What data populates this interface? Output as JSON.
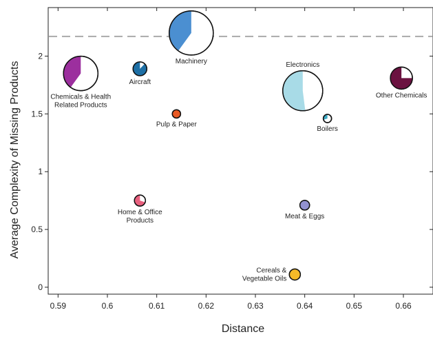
{
  "chart_data": {
    "type": "scatter",
    "subtype": "bubble-pie",
    "xlabel": "Distance",
    "ylabel": "Average Complexity of Missing Products",
    "xlim": [
      0.588,
      0.666
    ],
    "ylim": [
      -0.06,
      2.42
    ],
    "xticks": [
      "0.59",
      "0.6",
      "0.61",
      "0.62",
      "0.63",
      "0.64",
      "0.65",
      "0.66"
    ],
    "yticks": [
      "0",
      "0.5",
      "1",
      "1.5",
      "2"
    ],
    "reference_line": {
      "y": 2.17,
      "style": "dashed",
      "color": "#aaaaaa"
    },
    "points": [
      {
        "label": [
          "Machinery"
        ],
        "x": 0.617,
        "y": 2.2,
        "size": 32,
        "share": 0.4,
        "color": "#4b8fd1",
        "labelPos": "below"
      },
      {
        "label": [
          "Chemicals & Health",
          "Related Products"
        ],
        "x": 0.5946,
        "y": 1.85,
        "size": 25,
        "share": 0.4,
        "color": "#9c2f9e",
        "labelPos": "below"
      },
      {
        "label": [
          "Aircraft"
        ],
        "x": 0.6066,
        "y": 1.89,
        "size": 10,
        "share": 0.88,
        "color": "#1d6fa5",
        "labelPos": "below"
      },
      {
        "label": [
          "Pulp & Paper"
        ],
        "x": 0.614,
        "y": 1.5,
        "size": 6,
        "share": 1.0,
        "color": "#ea5a24",
        "labelPos": "below"
      },
      {
        "label": [
          "Electronics"
        ],
        "x": 0.6396,
        "y": 1.7,
        "size": 29,
        "share": 0.52,
        "color": "#a8dbe7",
        "labelPos": "above"
      },
      {
        "label": [
          "Boilers"
        ],
        "x": 0.6446,
        "y": 1.46,
        "size": 6,
        "share": 0.3,
        "color": "#3ba8c3",
        "labelPos": "below"
      },
      {
        "label": [
          "Other Chemicals"
        ],
        "x": 0.6596,
        "y": 1.81,
        "size": 16,
        "share": 0.75,
        "color": "#6b1240",
        "labelPos": "below"
      },
      {
        "label": [
          "Home & Office",
          "Products"
        ],
        "x": 0.6066,
        "y": 0.75,
        "size": 8,
        "share": 0.7,
        "color": "#e8607e",
        "labelPos": "below"
      },
      {
        "label": [
          "Meat & Eggs"
        ],
        "x": 0.64,
        "y": 0.71,
        "size": 7,
        "share": 1.0,
        "color": "#9291d0",
        "labelPos": "below"
      },
      {
        "label": [
          "Cereals &",
          "Vegetable Oils"
        ],
        "x": 0.638,
        "y": 0.11,
        "size": 8,
        "share": 1.0,
        "color": "#f5ba28",
        "labelPos": "left"
      }
    ]
  }
}
